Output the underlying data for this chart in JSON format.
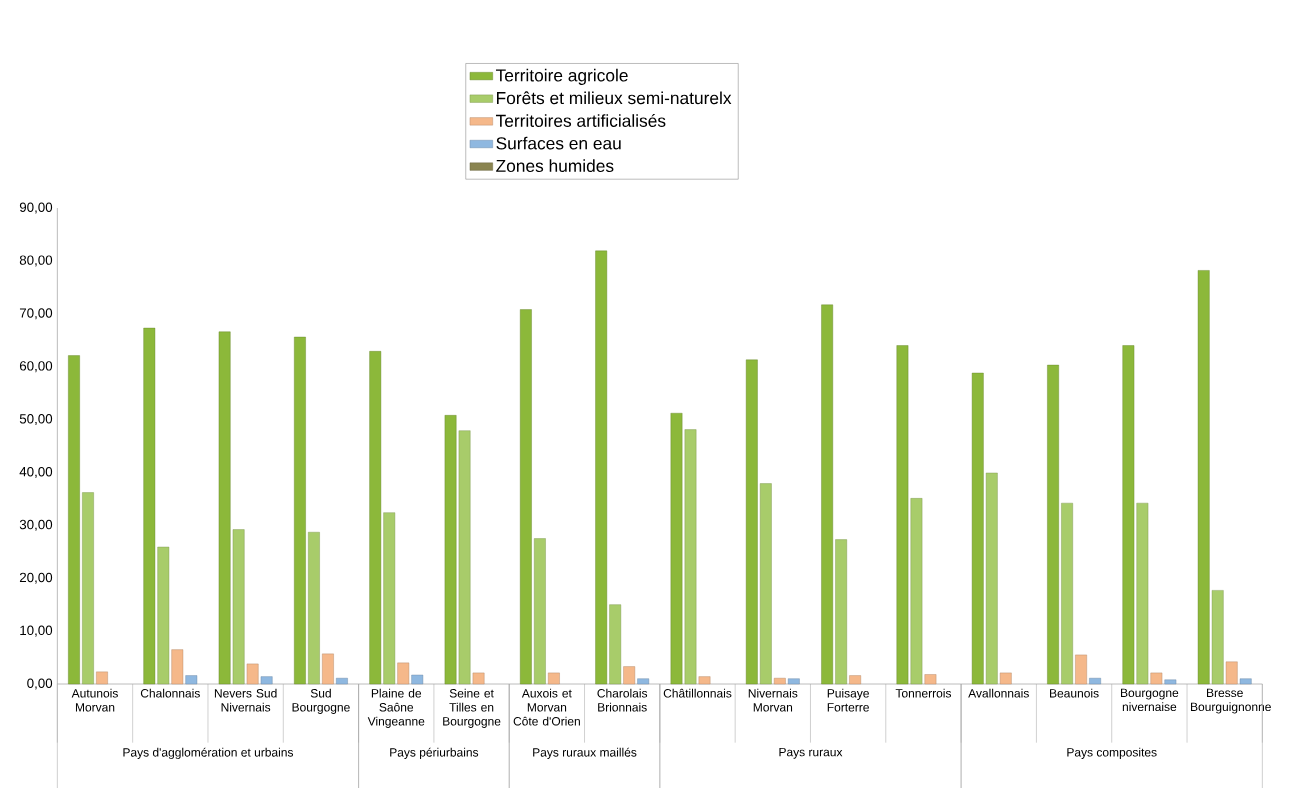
{
  "chart_data": {
    "type": "bar",
    "categories": [
      "Autunois Morvan",
      "Chalonnais",
      "Nevers Sud Nivernais",
      "Sud Bourgogne",
      "Plaine de Saône Vingeanne",
      "Seine et Tilles en Bourgogne",
      "Auxois et Morvan Côte d'Orien",
      "Charolais Brionnais",
      "Châtillonnais",
      "Nivernais Morvan",
      "Puisaye Forterre",
      "Tonnerrois",
      "Avallonnais",
      "Beaunois",
      "Bourgogne nivernaise",
      "Bresse Bourguignonne"
    ],
    "series": [
      {
        "name": "Territoire agricole",
        "color": "#8cb83a",
        "values": [
          62.1,
          67.3,
          66.6,
          65.6,
          62.9,
          50.8,
          70.8,
          81.9,
          51.2,
          61.3,
          71.7,
          64.0,
          58.8,
          60.3,
          64.0,
          78.2
        ]
      },
      {
        "name": "Forêts et milieux semi-naturelx",
        "color": "#a8cc6a",
        "values": [
          36.2,
          25.9,
          29.2,
          28.7,
          32.4,
          47.9,
          27.5,
          15.0,
          48.1,
          37.9,
          27.3,
          35.1,
          39.9,
          34.2,
          34.2,
          17.7
        ]
      },
      {
        "name": "Territoires artificialisés",
        "color": "#f5b88a",
        "values": [
          2.3,
          6.5,
          3.8,
          5.7,
          4.0,
          2.1,
          2.1,
          3.3,
          1.4,
          1.1,
          1.6,
          1.8,
          2.1,
          5.5,
          2.1,
          4.2
        ]
      },
      {
        "name": "Surfaces en eau",
        "color": "#8fb8e0",
        "values": [
          null,
          1.6,
          1.4,
          1.1,
          1.7,
          null,
          null,
          1.0,
          null,
          1.0,
          null,
          null,
          null,
          1.1,
          0.8,
          1.0
        ]
      },
      {
        "name": "Zones humides",
        "color": "#8a8450",
        "values": [
          null,
          null,
          null,
          null,
          null,
          null,
          null,
          null,
          null,
          null,
          null,
          null,
          null,
          null,
          null,
          null
        ]
      }
    ],
    "ylim": [
      0,
      90
    ],
    "yticks": [
      {
        "value": 0,
        "label": "0,00"
      },
      {
        "value": 10,
        "label": "10,00"
      },
      {
        "value": 20,
        "label": "20,00"
      },
      {
        "value": 30,
        "label": "30,00"
      },
      {
        "value": 40,
        "label": "40,00"
      },
      {
        "value": 50,
        "label": "50,00"
      },
      {
        "value": 60,
        "label": "60,00"
      },
      {
        "value": 70,
        "label": "70,00"
      },
      {
        "value": 80,
        "label": "80,00"
      },
      {
        "value": 90,
        "label": "90,00"
      }
    ],
    "annotations": [
      "Pays d'agglomération et urbains",
      "Pays périurbains",
      "Pays ruraux maillés",
      "Pays ruraux",
      "Pays composites"
    ],
    "legend": "top",
    "grid": false
  }
}
